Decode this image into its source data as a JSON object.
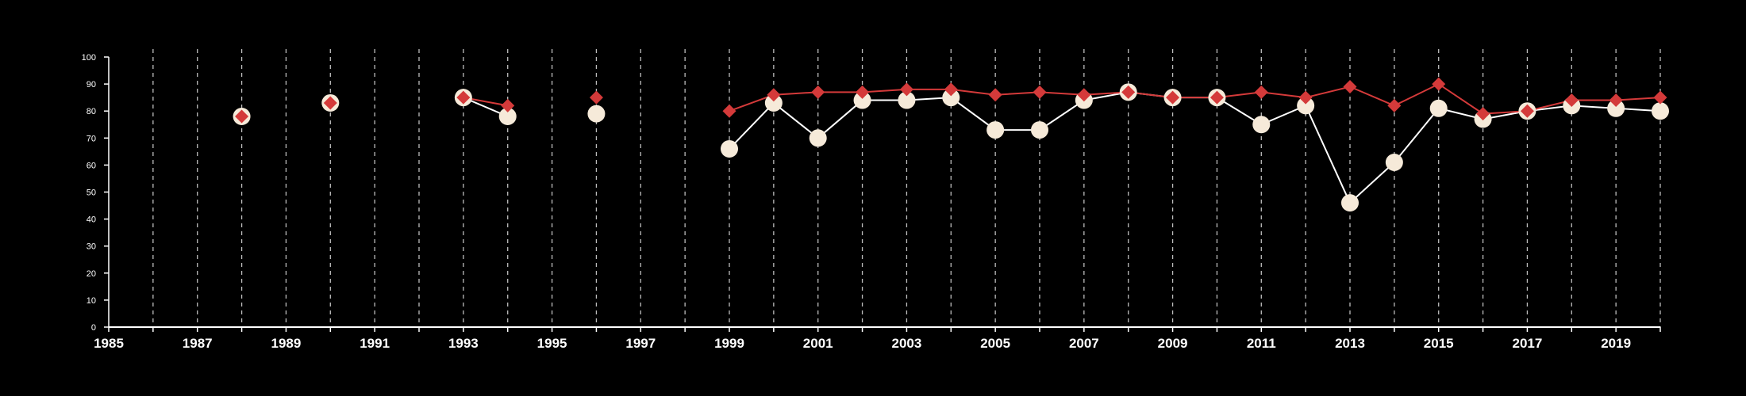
{
  "chart_data": {
    "type": "line",
    "title": "",
    "xlabel": "",
    "ylabel": "",
    "xlim": [
      1985,
      2020
    ],
    "ylim": [
      0,
      100
    ],
    "x_ticks": [
      "1985",
      "1987",
      "1989",
      "1991",
      "1993",
      "1995",
      "1997",
      "1999",
      "2001",
      "2003",
      "2005",
      "2007",
      "2009",
      "2011",
      "2013",
      "2015",
      "2017",
      "2019"
    ],
    "y_ticks": [
      "0",
      "10",
      "20",
      "30",
      "40",
      "50",
      "60",
      "70",
      "80",
      "90",
      "100"
    ],
    "grid": "vertical dashed lines at every year",
    "colors": {
      "background": "#000000",
      "axis": "#ffffff",
      "grid": "#bdbdbd",
      "series_circle": "#f6ead9",
      "series_circle_line": "#ffffff",
      "series_diamond": "#d43a3a"
    },
    "series": [
      {
        "marker": "circle",
        "x": [
          1988,
          1990,
          1993,
          1994,
          1996,
          1999,
          2000,
          2001,
          2002,
          2003,
          2004,
          2005,
          2006,
          2007,
          2008,
          2009,
          2010,
          2011,
          2012,
          2013,
          2014,
          2015,
          2016,
          2017,
          2018,
          2019,
          2020
        ],
        "values": [
          78,
          83,
          85,
          78,
          79,
          66,
          83,
          70,
          84,
          84,
          85,
          73,
          73,
          84,
          87,
          85,
          85,
          75,
          82,
          46,
          61,
          81,
          77,
          80,
          82,
          81,
          80
        ]
      },
      {
        "marker": "diamond",
        "x": [
          1988,
          1990,
          1993,
          1994,
          1996,
          1999,
          2000,
          2001,
          2002,
          2003,
          2004,
          2005,
          2006,
          2007,
          2008,
          2009,
          2010,
          2011,
          2012,
          2013,
          2014,
          2015,
          2016,
          2017,
          2018,
          2019,
          2020
        ],
        "values": [
          78,
          83,
          85,
          82,
          85,
          80,
          86,
          87,
          87,
          88,
          88,
          86,
          87,
          86,
          87,
          85,
          85,
          87,
          85,
          89,
          82,
          90,
          79,
          80,
          84,
          84,
          85
        ]
      }
    ]
  }
}
